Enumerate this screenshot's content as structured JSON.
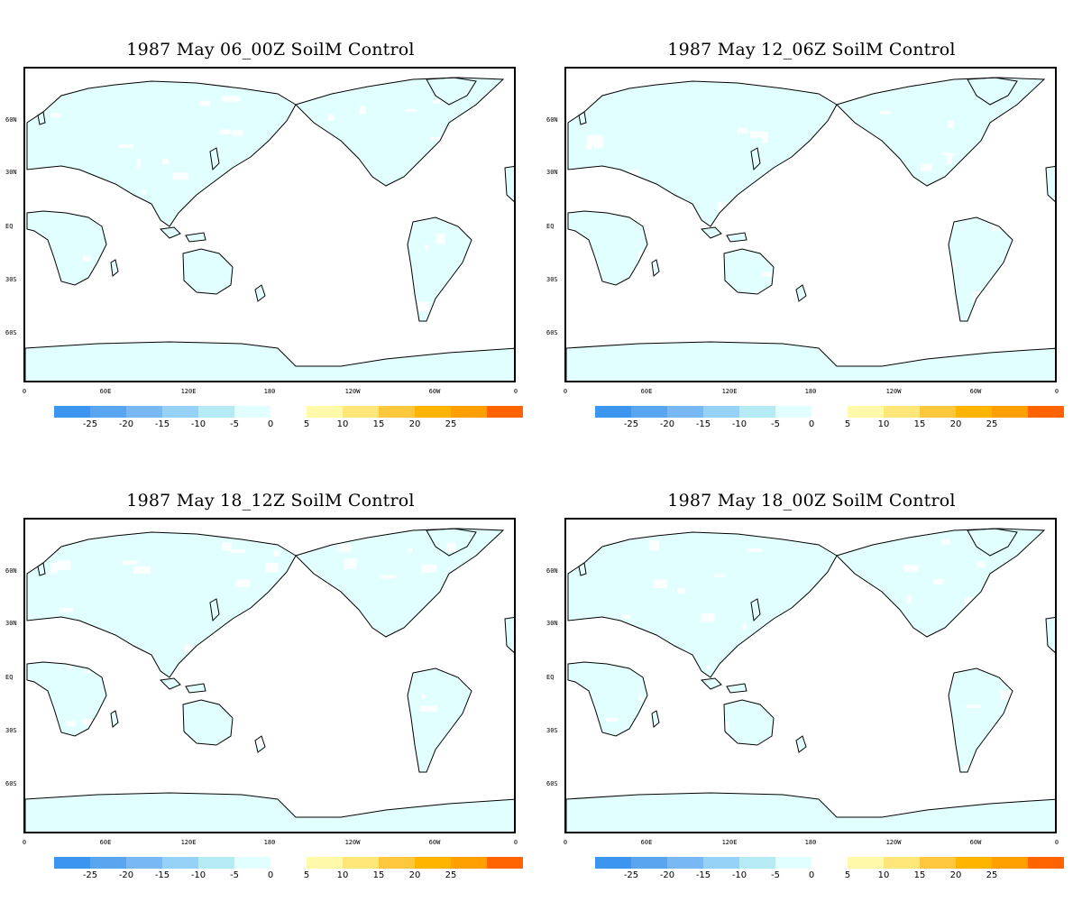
{
  "panels": [
    {
      "title": "1987 May 06_00Z SoilM Control"
    },
    {
      "title": "1987 May 12_06Z SoilM Control"
    },
    {
      "title": "1987 May 18_12Z SoilM Control"
    },
    {
      "title": "1987 May 18_00Z SoilM Control"
    }
  ],
  "lat_labels": [
    "60N",
    "30N",
    "EQ",
    "30S",
    "60S"
  ],
  "lon_labels": [
    "0",
    "60E",
    "120E",
    "180",
    "120W",
    "60W",
    "0"
  ],
  "colorbar": {
    "negative": {
      "colors": [
        "#3c96f0",
        "#5aa5f0",
        "#78b9f5",
        "#96d2f8",
        "#b4ebf5",
        "#e1ffff"
      ],
      "labels": [
        "-25",
        "-20",
        "-15",
        "-10",
        "-5",
        "0"
      ]
    },
    "positive": {
      "colors": [
        "#fffaaa",
        "#ffe678",
        "#ffc83c",
        "#ffb400",
        "#ffa000",
        "#ff6400"
      ],
      "labels": [
        "5",
        "10",
        "15",
        "20",
        "25"
      ]
    }
  },
  "colors": {
    "land_fill": "#e1ffff",
    "coast": "#000000"
  }
}
